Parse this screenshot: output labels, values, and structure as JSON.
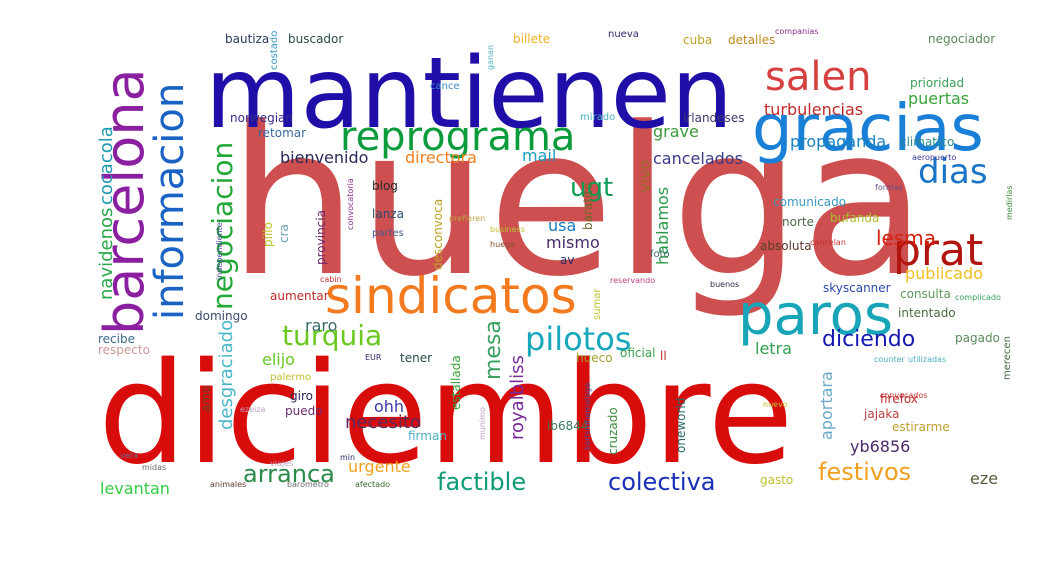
{
  "words": [
    {
      "text": "huelga",
      "color": "#cd4f4f"
    },
    {
      "text": "diciembre",
      "color": "#d90c0c"
    },
    {
      "text": "mantienen",
      "color": "#1f0fa8"
    },
    {
      "text": "gracias",
      "color": "#1a7fd6"
    },
    {
      "text": "barcelona",
      "color": "#8a1fa0"
    },
    {
      "text": "sindicatos",
      "color": "#f37a1f"
    },
    {
      "text": "paros",
      "color": "#18a5b8"
    },
    {
      "text": "reprograma",
      "color": "#0a9b3a"
    },
    {
      "text": "informacion",
      "color": "#1a62c4"
    },
    {
      "text": "salen",
      "color": "#d64040"
    },
    {
      "text": "prat",
      "color": "#b0160f"
    },
    {
      "text": "dias",
      "color": "#1a74c6"
    },
    {
      "text": "pilotos",
      "color": "#19a7bd"
    },
    {
      "text": "turquia",
      "color": "#6ac821"
    },
    {
      "text": "negociacion",
      "color": "#22a838"
    },
    {
      "text": "ugt",
      "color": "#0c9a55"
    },
    {
      "text": "lesma",
      "color": "#d4200f"
    },
    {
      "text": "diciendo",
      "color": "#1718b0"
    },
    {
      "text": "colectiva",
      "color": "#1b2fb6"
    },
    {
      "text": "factible",
      "color": "#0e9b76"
    },
    {
      "text": "arranca",
      "color": "#2a8a4a"
    },
    {
      "text": "festivos",
      "color": "#f0a020"
    },
    {
      "text": "mesa",
      "color": "#3aa060"
    },
    {
      "text": "royalbliss",
      "color": "#7a2a9a"
    },
    {
      "text": "necesito",
      "color": "#5a2a5a"
    },
    {
      "text": "cocacola",
      "color": "#1e9ab0"
    },
    {
      "text": "navidenos",
      "color": "#2aa84a"
    },
    {
      "text": "desgraciado",
      "color": "#4ab7c8"
    },
    {
      "text": "levantan",
      "color": "#33cc44"
    },
    {
      "text": "urgente",
      "color": "#f0a020"
    },
    {
      "text": "eze",
      "color": "#5a5a3a"
    },
    {
      "text": "yb6856",
      "color": "#4a2a6a"
    },
    {
      "text": "aportara",
      "color": "#6aa8c8"
    },
    {
      "text": "letra",
      "color": "#32a050"
    },
    {
      "text": "propaganda",
      "color": "#1a82c0"
    },
    {
      "text": "cancelados",
      "color": "#3a3a8a"
    },
    {
      "text": "grave",
      "color": "#3a9a3a"
    },
    {
      "text": "vivo",
      "color": "#9a6a2a"
    },
    {
      "text": "hablamos",
      "color": "#2a9a4a"
    },
    {
      "text": "publicado",
      "color": "#f0c020"
    },
    {
      "text": "puertas",
      "color": "#3aa33a"
    },
    {
      "text": "turbulencias",
      "color": "#c02a2a"
    },
    {
      "text": "mismo",
      "color": "#4a2a6a"
    },
    {
      "text": "usa",
      "color": "#1a7ac0"
    },
    {
      "text": "mail",
      "color": "#1aa0c0"
    },
    {
      "text": "directora",
      "color": "#f08020"
    },
    {
      "text": "bienvenido",
      "color": "#2a2a5a"
    },
    {
      "text": "elijo",
      "color": "#6ac821"
    },
    {
      "text": "raro",
      "color": "#3a6a6a"
    },
    {
      "text": "ohh",
      "color": "#3a3aaa"
    },
    {
      "text": "consulta",
      "color": "#5a9a5a"
    },
    {
      "text": "skyscanner",
      "color": "#2a4aaa"
    },
    {
      "text": "absoluta",
      "color": "#5a3a2a"
    },
    {
      "text": "intentado",
      "color": "#4a6a3a"
    },
    {
      "text": "comunicado",
      "color": "#3a9ac0"
    },
    {
      "text": "norte",
      "color": "#4a6a4a"
    },
    {
      "text": "bufanda",
      "color": "#aac030"
    },
    {
      "text": "climatico",
      "color": "#2a8a8a"
    },
    {
      "text": "prioridad",
      "color": "#3aa05a"
    },
    {
      "text": "negociador",
      "color": "#5a8a5a"
    },
    {
      "text": "bautiza",
      "color": "#2a3a5a"
    },
    {
      "text": "buscador",
      "color": "#2a4a4a"
    },
    {
      "text": "billete",
      "color": "#f0b020"
    },
    {
      "text": "nueva",
      "color": "#2a2a6a"
    },
    {
      "text": "cuba",
      "color": "#c0a020"
    },
    {
      "text": "detalles",
      "color": "#c08a20"
    },
    {
      "text": "companias",
      "color": "#8a2a8a"
    },
    {
      "text": "cance",
      "color": "#3a8ac0"
    },
    {
      "text": "mirado",
      "color": "#4ab0c0"
    },
    {
      "text": "irlandeses",
      "color": "#3a3a6a"
    },
    {
      "text": "norwegian",
      "color": "#3a2a8a"
    },
    {
      "text": "retomar",
      "color": "#3a6aa0"
    },
    {
      "text": "blog",
      "color": "#2a2a2a"
    },
    {
      "text": "lanza",
      "color": "#2a4a6a"
    },
    {
      "text": "partes",
      "color": "#4a5a8a"
    },
    {
      "text": "provincia",
      "color": "#6a2a6a"
    },
    {
      "text": "desconvoca",
      "color": "#c0a020"
    },
    {
      "text": "pillo",
      "color": "#c0c020"
    },
    {
      "text": "cra",
      "color": "#6aa0b0"
    },
    {
      "text": "huega",
      "color": "#8a4a2a"
    },
    {
      "text": "business",
      "color": "#c0c030"
    },
    {
      "text": "prefieren",
      "color": "#c0a040"
    },
    {
      "text": "baratito",
      "color": "#6a6a2a"
    },
    {
      "text": "foto",
      "color": "#3a6a6a"
    },
    {
      "text": "av",
      "color": "#2a2a6a"
    },
    {
      "text": "buenos",
      "color": "#2a2a4a"
    },
    {
      "text": "aumentar",
      "color": "#c02a2a"
    },
    {
      "text": "domingo",
      "color": "#3a4a6a"
    },
    {
      "text": "recibe",
      "color": "#3a6a8a"
    },
    {
      "text": "respecto",
      "color": "#cc9999"
    },
    {
      "text": "tener",
      "color": "#2a4a4a"
    },
    {
      "text": "hueco",
      "color": "#a0a030"
    },
    {
      "text": "oficial",
      "color": "#3aa04a"
    },
    {
      "text": "ll",
      "color": "#c03030"
    },
    {
      "text": "palermo",
      "color": "#c0c030"
    },
    {
      "text": "amo",
      "color": "#6a4a2a"
    },
    {
      "text": "giro",
      "color": "#2a2a5a"
    },
    {
      "text": "puedo",
      "color": "#6a2a6a"
    },
    {
      "text": "firman",
      "color": "#4ab0c0"
    },
    {
      "text": "ib6844",
      "color": "#3a7a5a"
    },
    {
      "text": "cruzado",
      "color": "#3a8a3a"
    },
    {
      "text": "oneworld",
      "color": "#2a6a6a"
    },
    {
      "text": "estallada",
      "color": "#3aa03a"
    },
    {
      "text": "firefox",
      "color": "#c03030"
    },
    {
      "text": "estirarme",
      "color": "#c0a030"
    },
    {
      "text": "jajaka",
      "color": "#c04040"
    },
    {
      "text": "pagado",
      "color": "#5a8a5a"
    },
    {
      "text": "merecen",
      "color": "#4a6a4a"
    },
    {
      "text": "gasto",
      "color": "#c0c030"
    },
    {
      "text": "animales",
      "color": "#5a3a2a"
    },
    {
      "text": "barometro",
      "color": "#6a6a6a"
    },
    {
      "text": "afectado",
      "color": "#3a6a2a"
    },
    {
      "text": "midas",
      "color": "#6a6a6a"
    },
    {
      "text": "viajes",
      "color": "#c0a0c0"
    },
    {
      "text": "vera",
      "color": "#6a6a8a"
    },
    {
      "text": "min",
      "color": "#2a2a6a"
    },
    {
      "text": "EUR",
      "color": "#2a2a6a"
    },
    {
      "text": "sumar",
      "color": "#c0c030"
    },
    {
      "text": "reservando",
      "color": "#c04080"
    },
    {
      "text": "cabin",
      "color": "#c03030"
    },
    {
      "text": "costado",
      "color": "#3a9ac0"
    },
    {
      "text": "ganan",
      "color": "#4ab0c0"
    },
    {
      "text": "convocatoria",
      "color": "#8a2a8a"
    },
    {
      "text": "independiente",
      "color": "#4a4a9a"
    },
    {
      "text": "cancelan",
      "color": "#c03030"
    },
    {
      "text": "formas",
      "color": "#6a4a8a"
    },
    {
      "text": "aeropuerto",
      "color": "#3a3a9a"
    },
    {
      "text": "medirlas",
      "color": "#3a8a3a"
    },
    {
      "text": "complicado",
      "color": "#3aa05a"
    },
    {
      "text": "utilizadas",
      "color": "#4ab0c0"
    },
    {
      "text": "counter",
      "color": "#4ab0c0"
    },
    {
      "text": "convocados",
      "color": "#c03030"
    },
    {
      "text": "nuevo",
      "color": "#c0c030"
    },
    {
      "text": "karlsruhemalaga",
      "color": "#4a4a9a"
    },
    {
      "text": "munimo",
      "color": "#c0a0c0"
    },
    {
      "text": "ezeiza",
      "color": "#c0a0c0"
    }
  ]
}
